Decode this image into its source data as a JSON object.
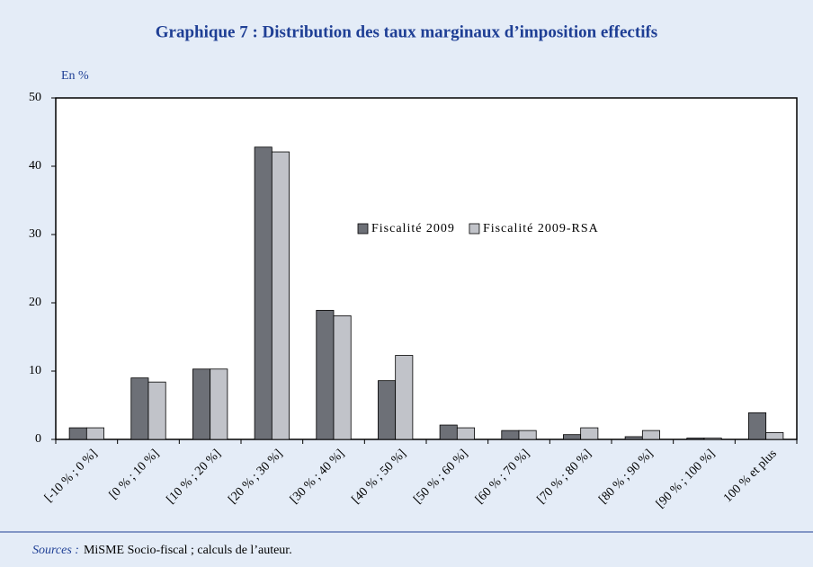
{
  "chart_data": {
    "type": "bar",
    "title": "Graphique 7 : Distribution des taux marginaux d’imposition effectifs",
    "y_unit_label": "En %",
    "categories": [
      "[-10 % ; 0 %]",
      "[0 % ; 10 %]",
      "[10 % ; 20 %]",
      "[20 % ; 30 %]",
      "[30 % ; 40 %]",
      "[40 % ; 50 %]",
      "[50 % ; 60 %]",
      "[60 % ; 70 %]",
      "[70 % ; 80 %]",
      "[80 % ; 90 %]",
      "[90 % ; 100 %]",
      "100 % et plus"
    ],
    "series": [
      {
        "name": "Fiscalité 2009",
        "color": "#6d7077",
        "values": [
          1.7,
          9.0,
          10.3,
          42.8,
          18.9,
          8.6,
          2.1,
          1.3,
          0.7,
          0.4,
          0.2,
          3.9
        ]
      },
      {
        "name": "Fiscalité 2009-RSA",
        "color": "#c1c3c9",
        "values": [
          1.7,
          8.4,
          10.3,
          42.1,
          18.1,
          12.3,
          1.7,
          1.3,
          1.7,
          1.3,
          0.2,
          1.0
        ]
      }
    ],
    "ylim": [
      0,
      50
    ],
    "yticks": [
      0,
      10,
      20,
      30,
      40,
      50
    ],
    "legend": "upper center",
    "source_label": "Sources :",
    "source_text": "MiSME Socio-fiscal ; calculs de l’auteur."
  }
}
